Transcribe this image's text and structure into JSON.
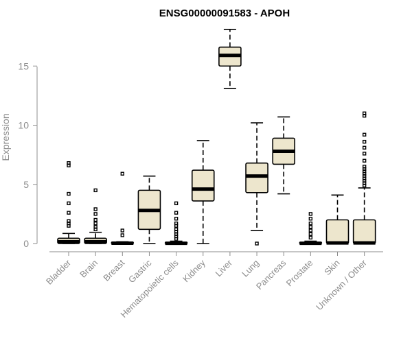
{
  "chart_data": {
    "type": "box",
    "title": "ENSG00000091583 - APOH",
    "ylabel": "Expression",
    "xlabel": "",
    "ylim": [
      0,
      18.2
    ],
    "yticks": [
      0,
      5,
      10,
      15
    ],
    "grid": false,
    "colors": {
      "box_fill": "#ede6cd",
      "stroke": "#000000",
      "axis": "#8c8c8c"
    },
    "categories": [
      "Bladder",
      "Brain",
      "Breast",
      "Gastric",
      "Hematopoietic cells",
      "Kidney",
      "Liver",
      "Lung",
      "Pancreas",
      "Prostate",
      "Skin",
      "Unknown / Other"
    ],
    "boxes": [
      {
        "name": "Bladder",
        "lower_whisker": 0.0,
        "q1": 0.0,
        "median": 0.15,
        "q3": 0.45,
        "upper_whisker": 0.85,
        "outliers": [
          1.5,
          1.7,
          1.9,
          2.6,
          3.4,
          4.2,
          6.6,
          6.8
        ]
      },
      {
        "name": "Brain",
        "lower_whisker": 0.0,
        "q1": 0.0,
        "median": 0.15,
        "q3": 0.45,
        "upper_whisker": 0.95,
        "outliers": [
          1.2,
          1.4,
          1.7,
          2.0,
          2.5,
          2.9,
          4.5
        ]
      },
      {
        "name": "Breast",
        "lower_whisker": 0.0,
        "q1": 0.0,
        "median": 0.03,
        "q3": 0.1,
        "upper_whisker": 0.15,
        "outliers": [
          0.7,
          1.1,
          5.9
        ]
      },
      {
        "name": "Gastric",
        "lower_whisker": 0.0,
        "q1": 1.2,
        "median": 2.8,
        "q3": 4.5,
        "upper_whisker": 5.7,
        "outliers": []
      },
      {
        "name": "Hematopoietic cells",
        "lower_whisker": 0.0,
        "q1": 0.0,
        "median": 0.02,
        "q3": 0.1,
        "upper_whisker": 0.2,
        "outliers": [
          0.4,
          0.6,
          0.8,
          1.0,
          1.2,
          1.5,
          1.7,
          2.1,
          2.6,
          3.4
        ]
      },
      {
        "name": "Kidney",
        "lower_whisker": 0.0,
        "q1": 3.6,
        "median": 4.6,
        "q3": 6.2,
        "upper_whisker": 8.7,
        "outliers": []
      },
      {
        "name": "Liver",
        "lower_whisker": 13.1,
        "q1": 15.0,
        "median": 15.9,
        "q3": 16.6,
        "upper_whisker": 18.1,
        "outliers": []
      },
      {
        "name": "Lung",
        "lower_whisker": 1.1,
        "q1": 4.3,
        "median": 5.7,
        "q3": 6.8,
        "upper_whisker": 10.2,
        "outliers": [
          0.0
        ]
      },
      {
        "name": "Pancreas",
        "lower_whisker": 4.2,
        "q1": 6.7,
        "median": 7.8,
        "q3": 8.9,
        "upper_whisker": 10.7,
        "outliers": []
      },
      {
        "name": "Prostate",
        "lower_whisker": 0.0,
        "q1": 0.0,
        "median": 0.02,
        "q3": 0.1,
        "upper_whisker": 0.2,
        "outliers": [
          0.5,
          0.8,
          1.1,
          1.4,
          1.7,
          2.1,
          2.5
        ]
      },
      {
        "name": "Skin",
        "lower_whisker": 0.0,
        "q1": 0.0,
        "median": 0.05,
        "q3": 2.0,
        "upper_whisker": 4.1,
        "outliers": []
      },
      {
        "name": "Unknown / Other",
        "lower_whisker": 0.0,
        "q1": 0.0,
        "median": 0.05,
        "q3": 2.0,
        "upper_whisker": 4.7,
        "outliers": [
          4.9,
          5.1,
          5.3,
          5.5,
          5.7,
          5.9,
          6.1,
          6.3,
          6.5,
          7.0,
          7.6,
          8.1,
          8.6,
          9.2,
          10.8,
          11.0
        ]
      }
    ]
  }
}
